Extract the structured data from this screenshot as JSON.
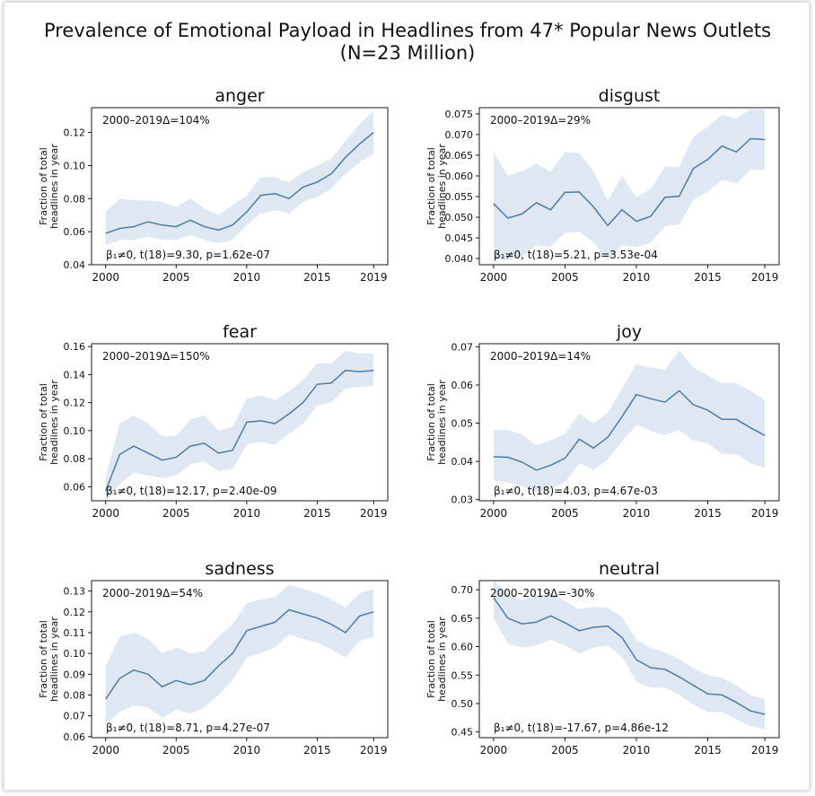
{
  "figure": {
    "title_line1": "Prevalence of Emotional Payload in Headlines from 47* Popular News Outlets",
    "title_line2": "(N=23 Million)"
  },
  "colors": {
    "line": "#4c7ca8",
    "band": "#dbe6f1"
  },
  "chart_data": [
    {
      "type": "line",
      "title": "anger",
      "ylabel": [
        "Fraction of total",
        "headlines in year"
      ],
      "delta_label": "2000–2019Δ=104%",
      "stat_label": "β₁≠0, t(18)=9.30, p=1.62e-07",
      "x": [
        2000,
        2001,
        2002,
        2003,
        2004,
        2005,
        2006,
        2007,
        2008,
        2009,
        2010,
        2011,
        2012,
        2013,
        2014,
        2015,
        2016,
        2017,
        2018,
        2019
      ],
      "y": [
        0.059,
        0.062,
        0.063,
        0.066,
        0.064,
        0.063,
        0.067,
        0.063,
        0.061,
        0.064,
        0.072,
        0.082,
        0.083,
        0.08,
        0.087,
        0.09,
        0.095,
        0.105,
        0.113,
        0.12
      ],
      "lower": [
        0.052,
        0.055,
        0.055,
        0.057,
        0.055,
        0.055,
        0.058,
        0.055,
        0.053,
        0.055,
        0.064,
        0.071,
        0.073,
        0.071,
        0.078,
        0.081,
        0.086,
        0.095,
        0.102,
        0.107
      ],
      "upper": [
        0.072,
        0.08,
        0.079,
        0.079,
        0.078,
        0.075,
        0.08,
        0.074,
        0.07,
        0.076,
        0.082,
        0.093,
        0.093,
        0.09,
        0.096,
        0.1,
        0.104,
        0.115,
        0.125,
        0.133
      ],
      "xlim": [
        1999,
        2020
      ],
      "ylim": [
        0.04,
        0.135
      ],
      "xticks": [
        2000,
        2005,
        2010,
        2015,
        2019
      ],
      "yticks": [
        0.04,
        0.06,
        0.08,
        0.1,
        0.12
      ],
      "ytick_labels": [
        "0.04",
        "0.06",
        "0.08",
        "0.10",
        "0.12"
      ]
    },
    {
      "type": "line",
      "title": "disgust",
      "ylabel": [
        "Fraction of total",
        "headlines in year"
      ],
      "delta_label": "2000–2019Δ=29%",
      "stat_label": "β₁≠0, t(18)=5.21, p=3.53e-04",
      "x": [
        2000,
        2001,
        2002,
        2003,
        2004,
        2005,
        2006,
        2007,
        2008,
        2009,
        2010,
        2011,
        2012,
        2013,
        2014,
        2015,
        2016,
        2017,
        2018,
        2019
      ],
      "y": [
        0.0533,
        0.0498,
        0.0508,
        0.0535,
        0.0518,
        0.056,
        0.0561,
        0.0525,
        0.048,
        0.0518,
        0.049,
        0.0502,
        0.0548,
        0.0551,
        0.0618,
        0.064,
        0.0672,
        0.0658,
        0.069,
        0.0688
      ],
      "lower": [
        0.04,
        0.0395,
        0.0405,
        0.0432,
        0.0428,
        0.0462,
        0.0465,
        0.044,
        0.0395,
        0.0432,
        0.0428,
        0.0438,
        0.0478,
        0.0482,
        0.0542,
        0.0562,
        0.059,
        0.0582,
        0.0615,
        0.0615
      ],
      "upper": [
        0.0658,
        0.06,
        0.0612,
        0.063,
        0.061,
        0.0658,
        0.0655,
        0.0612,
        0.054,
        0.06,
        0.0548,
        0.0568,
        0.0622,
        0.0622,
        0.0695,
        0.0718,
        0.0748,
        0.0738,
        0.0762,
        0.076
      ],
      "xlim": [
        1999,
        2020
      ],
      "ylim": [
        0.0385,
        0.0765
      ],
      "xticks": [
        2000,
        2005,
        2010,
        2015,
        2019
      ],
      "yticks": [
        0.04,
        0.045,
        0.05,
        0.055,
        0.06,
        0.065,
        0.07,
        0.075
      ],
      "ytick_labels": [
        "0.040",
        "0.045",
        "0.050",
        "0.055",
        "0.060",
        "0.065",
        "0.070",
        "0.075"
      ]
    },
    {
      "type": "line",
      "title": "fear",
      "ylabel": [
        "Fraction of total",
        "headlines in year"
      ],
      "delta_label": "2000–2019Δ=150%",
      "stat_label": "β₁≠0, t(18)=12.17, p=2.40e-09",
      "x": [
        2000,
        2001,
        2002,
        2003,
        2004,
        2005,
        2006,
        2007,
        2008,
        2009,
        2010,
        2011,
        2012,
        2013,
        2014,
        2015,
        2016,
        2017,
        2018,
        2019
      ],
      "y": [
        0.057,
        0.083,
        0.089,
        0.084,
        0.079,
        0.081,
        0.089,
        0.091,
        0.084,
        0.086,
        0.106,
        0.107,
        0.105,
        0.112,
        0.12,
        0.133,
        0.134,
        0.143,
        0.142,
        0.143
      ],
      "lower": [
        0.05,
        0.062,
        0.07,
        0.068,
        0.066,
        0.068,
        0.076,
        0.078,
        0.071,
        0.073,
        0.09,
        0.092,
        0.09,
        0.098,
        0.105,
        0.118,
        0.12,
        0.13,
        0.131,
        0.132
      ],
      "upper": [
        0.067,
        0.105,
        0.111,
        0.105,
        0.096,
        0.096,
        0.108,
        0.111,
        0.1,
        0.103,
        0.123,
        0.125,
        0.122,
        0.128,
        0.136,
        0.148,
        0.148,
        0.157,
        0.155,
        0.155
      ],
      "xlim": [
        1999,
        2020
      ],
      "ylim": [
        0.05,
        0.162
      ],
      "xticks": [
        2000,
        2005,
        2010,
        2015,
        2019
      ],
      "yticks": [
        0.06,
        0.08,
        0.1,
        0.12,
        0.14,
        0.16
      ],
      "ytick_labels": [
        "0.06",
        "0.08",
        "0.10",
        "0.12",
        "0.14",
        "0.16"
      ]
    },
    {
      "type": "line",
      "title": "joy",
      "ylabel": [
        "Fraction of total",
        "headlines in year"
      ],
      "delta_label": "2000–2019Δ=14%",
      "stat_label": "β₁≠0, t(18)=4.03, p=4.67e-03",
      "x": [
        2000,
        2001,
        2002,
        2003,
        2004,
        2005,
        2006,
        2007,
        2008,
        2009,
        2010,
        2011,
        2012,
        2013,
        2014,
        2015,
        2016,
        2017,
        2018,
        2019
      ],
      "y": [
        0.0412,
        0.0411,
        0.0398,
        0.0377,
        0.039,
        0.0408,
        0.0458,
        0.0435,
        0.0463,
        0.0517,
        0.0575,
        0.0564,
        0.0555,
        0.0585,
        0.0548,
        0.0534,
        0.051,
        0.051,
        0.0488,
        0.0468
      ],
      "lower": [
        0.035,
        0.0345,
        0.0335,
        0.032,
        0.0328,
        0.0345,
        0.0395,
        0.0378,
        0.0405,
        0.0452,
        0.0495,
        0.048,
        0.0468,
        0.0482,
        0.0455,
        0.0448,
        0.042,
        0.0418,
        0.0395,
        0.0382
      ],
      "upper": [
        0.0482,
        0.0482,
        0.047,
        0.0442,
        0.0455,
        0.0472,
        0.0525,
        0.05,
        0.0528,
        0.059,
        0.0655,
        0.0645,
        0.064,
        0.069,
        0.0645,
        0.0625,
        0.0605,
        0.0605,
        0.0585,
        0.056
      ],
      "xlim": [
        1999,
        2020
      ],
      "ylim": [
        0.0297,
        0.0708
      ],
      "xticks": [
        2000,
        2005,
        2010,
        2015,
        2019
      ],
      "yticks": [
        0.03,
        0.04,
        0.05,
        0.06,
        0.07
      ],
      "ytick_labels": [
        "0.03",
        "0.04",
        "0.05",
        "0.06",
        "0.07"
      ]
    },
    {
      "type": "line",
      "title": "sadness",
      "ylabel": [
        "Fraction of total",
        "headlines in year"
      ],
      "delta_label": "2000–2019Δ=54%",
      "stat_label": "β₁≠0, t(18)=8.71, p=4.27e-07",
      "x": [
        2000,
        2001,
        2002,
        2003,
        2004,
        2005,
        2006,
        2007,
        2008,
        2009,
        2010,
        2011,
        2012,
        2013,
        2014,
        2015,
        2016,
        2017,
        2018,
        2019
      ],
      "y": [
        0.078,
        0.088,
        0.092,
        0.09,
        0.084,
        0.087,
        0.085,
        0.087,
        0.094,
        0.1,
        0.111,
        0.113,
        0.115,
        0.121,
        0.119,
        0.117,
        0.114,
        0.11,
        0.118,
        0.12
      ],
      "lower": [
        0.066,
        0.072,
        0.075,
        0.074,
        0.069,
        0.073,
        0.071,
        0.074,
        0.08,
        0.087,
        0.098,
        0.1,
        0.103,
        0.109,
        0.107,
        0.105,
        0.102,
        0.098,
        0.106,
        0.108
      ],
      "upper": [
        0.094,
        0.108,
        0.11,
        0.107,
        0.1,
        0.103,
        0.1,
        0.101,
        0.108,
        0.114,
        0.124,
        0.126,
        0.127,
        0.133,
        0.131,
        0.129,
        0.126,
        0.122,
        0.129,
        0.131
      ],
      "xlim": [
        1999,
        2020
      ],
      "ylim": [
        0.0595,
        0.135
      ],
      "xticks": [
        2000,
        2005,
        2010,
        2015,
        2019
      ],
      "yticks": [
        0.06,
        0.07,
        0.08,
        0.09,
        0.1,
        0.11,
        0.12,
        0.13
      ],
      "ytick_labels": [
        "0.06",
        "0.07",
        "0.08",
        "0.09",
        "0.10",
        "0.11",
        "0.12",
        "0.13"
      ]
    },
    {
      "type": "line",
      "title": "neutral",
      "ylabel": [
        "Fraction of total",
        "headlines in year"
      ],
      "delta_label": "2000–2019Δ=-30%",
      "stat_label": "β₁≠0, t(18)=-17.67, p=4.86e-12",
      "x": [
        2000,
        2001,
        2002,
        2003,
        2004,
        2005,
        2006,
        2007,
        2008,
        2009,
        2010,
        2011,
        2012,
        2013,
        2014,
        2015,
        2016,
        2017,
        2018,
        2019
      ],
      "y": [
        0.686,
        0.65,
        0.64,
        0.643,
        0.654,
        0.642,
        0.628,
        0.634,
        0.636,
        0.616,
        0.577,
        0.563,
        0.56,
        0.547,
        0.532,
        0.517,
        0.515,
        0.502,
        0.487,
        0.481
      ],
      "lower": [
        0.65,
        0.605,
        0.598,
        0.602,
        0.612,
        0.602,
        0.588,
        0.598,
        0.602,
        0.582,
        0.538,
        0.528,
        0.528,
        0.515,
        0.498,
        0.485,
        0.485,
        0.472,
        0.46,
        0.455
      ],
      "upper": [
        0.718,
        0.69,
        0.682,
        0.688,
        0.695,
        0.68,
        0.666,
        0.67,
        0.668,
        0.652,
        0.612,
        0.598,
        0.59,
        0.578,
        0.562,
        0.55,
        0.545,
        0.532,
        0.515,
        0.508
      ],
      "xlim": [
        1999,
        2020
      ],
      "ylim": [
        0.44,
        0.716
      ],
      "xticks": [
        2000,
        2005,
        2010,
        2015,
        2019
      ],
      "yticks": [
        0.45,
        0.5,
        0.55,
        0.6,
        0.65,
        0.7
      ],
      "ytick_labels": [
        "0.45",
        "0.50",
        "0.55",
        "0.60",
        "0.65",
        "0.70"
      ]
    }
  ]
}
